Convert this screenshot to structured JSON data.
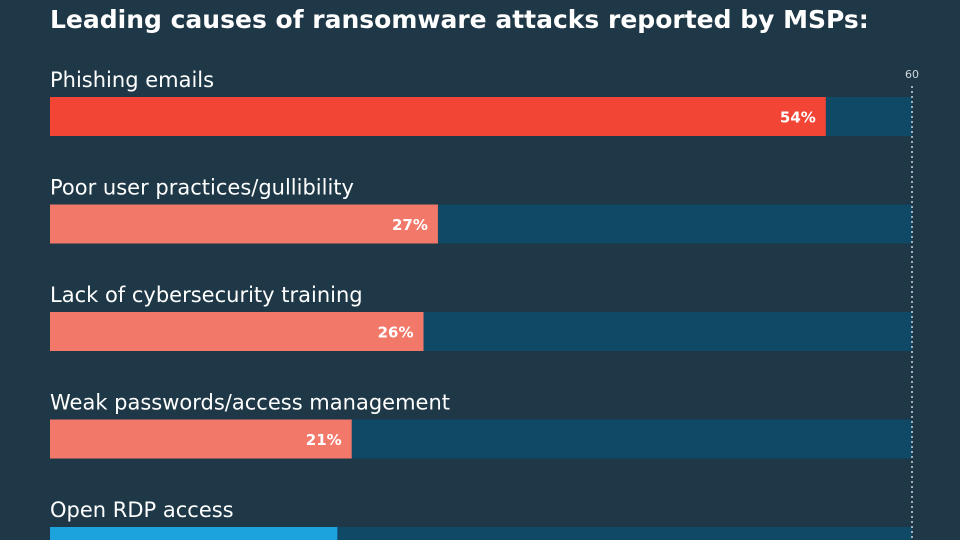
{
  "chart_data": {
    "type": "bar",
    "orientation": "horizontal",
    "title": "Leading causes of ransomware attacks reported by MSPs:",
    "xlim": [
      0,
      60
    ],
    "axis_max_label": "60",
    "value_suffix": "%",
    "grid": false,
    "categories": [
      "Phishing emails",
      "Poor user practices/gullibility",
      "Lack of cybersecurity training",
      "Weak passwords/access management",
      "Open RDP access"
    ],
    "values": [
      54,
      27,
      26,
      21,
      20
    ],
    "bar_colors": [
      "#f24536",
      "#f2786a",
      "#f2786a",
      "#f2786a",
      "#1ca3dd"
    ],
    "track_color": "#0f4966",
    "background_color": "#1f3847",
    "label_color": "#ffffff",
    "axis_label_color": "#cfd8de"
  }
}
